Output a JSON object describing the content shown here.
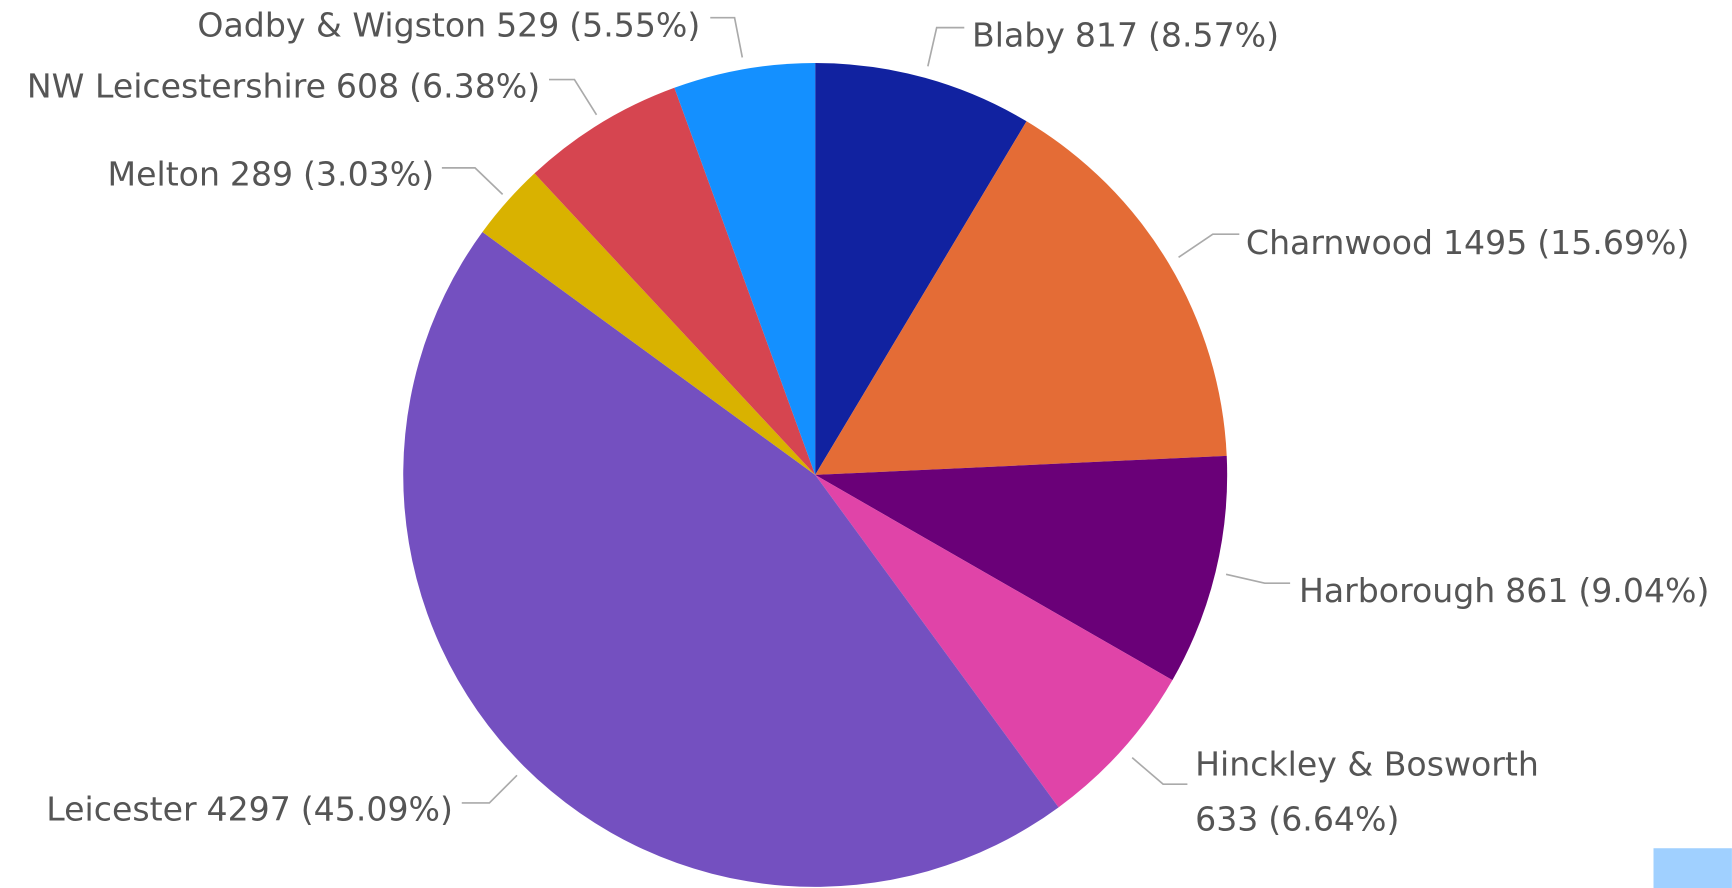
{
  "chart_data": {
    "type": "pie",
    "categories": [
      "Blaby",
      "Charnwood",
      "Harborough",
      "Hinckley & Bosworth",
      "Leicester",
      "Melton",
      "NW Leicestershire",
      "Oadby & Wigston"
    ],
    "values": [
      817,
      1495,
      861,
      633,
      4297,
      289,
      608,
      529
    ],
    "percentages": [
      8.57,
      15.69,
      9.04,
      6.64,
      45.09,
      3.03,
      6.38,
      5.55
    ],
    "percentage_labels": [
      "(8.57%)",
      "(15.69%)",
      "(9.04%)",
      "(6.64%)",
      "(45.09%)",
      "(3.03%)",
      "(6.38%)",
      "(5.55%)"
    ],
    "colors": [
      "#1122a0",
      "#e46c36",
      "#6a0078",
      "#e044a8",
      "#7450c0",
      "#d9b200",
      "#d64550",
      "#1490ff"
    ]
  }
}
